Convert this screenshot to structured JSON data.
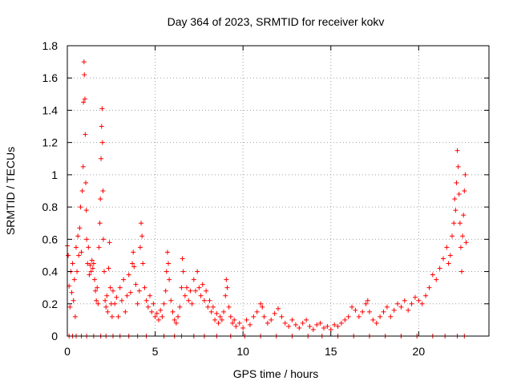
{
  "chart_data": {
    "type": "scatter",
    "title": "Day 364 of 2023, SRMTID for receiver kokv",
    "xlabel": "GPS time / hours",
    "ylabel": "SRMTID / TECUs",
    "xlim": [
      0,
      24
    ],
    "ylim": [
      0,
      1.8
    ],
    "x_ticks": [
      0,
      5,
      10,
      15,
      20
    ],
    "x_tick_labels": [
      "0",
      "5",
      "10",
      "15",
      "20"
    ],
    "y_ticks": [
      0,
      0.2,
      0.4,
      0.6,
      0.8,
      1,
      1.2,
      1.4,
      1.6,
      1.8
    ],
    "y_tick_labels": [
      "0",
      "0.2",
      "0.4",
      "0.6",
      "0.8",
      "1",
      "1.2",
      "1.4",
      "1.6",
      "1.8"
    ],
    "grid": true,
    "marker": "+",
    "marker_color": "#ff0000",
    "series": [
      {
        "name": "SRMTID",
        "points": [
          [
            0.0,
            0.56
          ],
          [
            0.05,
            0.5
          ],
          [
            0.1,
            0.31
          ],
          [
            0.15,
            0.18
          ],
          [
            0.2,
            0.4
          ],
          [
            0.25,
            0.27
          ],
          [
            0.3,
            0.45
          ],
          [
            0.35,
            0.22
          ],
          [
            0.4,
            0.35
          ],
          [
            0.45,
            0.12
          ],
          [
            0.5,
            0.55
          ],
          [
            0.55,
            0.4
          ],
          [
            0.6,
            0.62
          ],
          [
            0.65,
            0.5
          ],
          [
            0.7,
            0.67
          ],
          [
            0.75,
            0.8
          ],
          [
            0.8,
            0.52
          ],
          [
            0.85,
            0.9
          ],
          [
            0.9,
            1.05
          ],
          [
            0.92,
            1.45
          ],
          [
            0.95,
            1.7
          ],
          [
            0.97,
            1.62
          ],
          [
            1.0,
            1.47
          ],
          [
            1.02,
            1.25
          ],
          [
            1.05,
            0.95
          ],
          [
            1.08,
            0.78
          ],
          [
            1.1,
            0.6
          ],
          [
            1.15,
            0.45
          ],
          [
            1.2,
            0.55
          ],
          [
            1.25,
            0.38
          ],
          [
            1.3,
            0.44
          ],
          [
            1.35,
            0.4
          ],
          [
            1.4,
            0.47
          ],
          [
            1.45,
            0.42
          ],
          [
            1.5,
            0.45
          ],
          [
            1.55,
            0.35
          ],
          [
            1.6,
            0.28
          ],
          [
            1.65,
            0.22
          ],
          [
            1.7,
            0.3
          ],
          [
            1.75,
            0.2
          ],
          [
            1.8,
            0.55
          ],
          [
            1.85,
            0.7
          ],
          [
            1.88,
            0.85
          ],
          [
            1.92,
            1.1
          ],
          [
            1.95,
            1.3
          ],
          [
            1.98,
            1.41
          ],
          [
            2.0,
            1.2
          ],
          [
            2.03,
            0.9
          ],
          [
            2.05,
            0.6
          ],
          [
            2.1,
            0.4
          ],
          [
            2.15,
            0.22
          ],
          [
            2.2,
            0.18
          ],
          [
            2.25,
            0.25
          ],
          [
            2.3,
            0.15
          ],
          [
            2.35,
            0.42
          ],
          [
            2.4,
            0.58
          ],
          [
            2.45,
            0.3
          ],
          [
            2.5,
            0.2
          ],
          [
            2.55,
            0.12
          ],
          [
            2.6,
            0.28
          ],
          [
            2.7,
            0.2
          ],
          [
            2.8,
            0.24
          ],
          [
            2.9,
            0.12
          ],
          [
            3.0,
            0.3
          ],
          [
            3.1,
            0.22
          ],
          [
            3.2,
            0.35
          ],
          [
            3.3,
            0.15
          ],
          [
            3.4,
            0.25
          ],
          [
            3.5,
            0.38
          ],
          [
            3.6,
            0.27
          ],
          [
            3.7,
            0.45
          ],
          [
            3.75,
            0.52
          ],
          [
            3.8,
            0.43
          ],
          [
            3.9,
            0.32
          ],
          [
            4.0,
            0.2
          ],
          [
            4.1,
            0.28
          ],
          [
            4.15,
            0.55
          ],
          [
            4.2,
            0.7
          ],
          [
            4.25,
            0.62
          ],
          [
            4.3,
            0.45
          ],
          [
            4.4,
            0.3
          ],
          [
            4.5,
            0.22
          ],
          [
            4.6,
            0.18
          ],
          [
            4.7,
            0.25
          ],
          [
            4.8,
            0.15
          ],
          [
            4.9,
            0.2
          ],
          [
            5.0,
            0.12
          ],
          [
            5.1,
            0.14
          ],
          [
            5.2,
            0.1
          ],
          [
            5.3,
            0.16
          ],
          [
            5.4,
            0.12
          ],
          [
            5.5,
            0.2
          ],
          [
            5.6,
            0.28
          ],
          [
            5.65,
            0.4
          ],
          [
            5.7,
            0.52
          ],
          [
            5.75,
            0.45
          ],
          [
            5.8,
            0.35
          ],
          [
            5.9,
            0.22
          ],
          [
            6.0,
            0.15
          ],
          [
            6.1,
            0.1
          ],
          [
            6.2,
            0.08
          ],
          [
            6.3,
            0.12
          ],
          [
            6.4,
            0.18
          ],
          [
            6.5,
            0.3
          ],
          [
            6.55,
            0.48
          ],
          [
            6.6,
            0.4
          ],
          [
            6.7,
            0.25
          ],
          [
            6.8,
            0.3
          ],
          [
            6.9,
            0.22
          ],
          [
            7.0,
            0.28
          ],
          [
            7.1,
            0.2
          ],
          [
            7.2,
            0.35
          ],
          [
            7.3,
            0.28
          ],
          [
            7.4,
            0.4
          ],
          [
            7.5,
            0.3
          ],
          [
            7.6,
            0.25
          ],
          [
            7.7,
            0.32
          ],
          [
            7.8,
            0.22
          ],
          [
            7.9,
            0.28
          ],
          [
            8.0,
            0.18
          ],
          [
            8.1,
            0.22
          ],
          [
            8.2,
            0.15
          ],
          [
            8.3,
            0.18
          ],
          [
            8.4,
            0.1
          ],
          [
            8.5,
            0.14
          ],
          [
            8.6,
            0.08
          ],
          [
            8.7,
            0.12
          ],
          [
            8.8,
            0.1
          ],
          [
            8.9,
            0.15
          ],
          [
            9.0,
            0.25
          ],
          [
            9.05,
            0.35
          ],
          [
            9.1,
            0.3
          ],
          [
            9.2,
            0.18
          ],
          [
            9.3,
            0.12
          ],
          [
            9.4,
            0.08
          ],
          [
            9.5,
            0.1
          ],
          [
            9.6,
            0.06
          ],
          [
            9.8,
            0.08
          ],
          [
            10.0,
            0.05
          ],
          [
            10.2,
            0.1
          ],
          [
            10.4,
            0.07
          ],
          [
            10.6,
            0.12
          ],
          [
            10.8,
            0.15
          ],
          [
            11.0,
            0.2
          ],
          [
            11.1,
            0.18
          ],
          [
            11.2,
            0.12
          ],
          [
            11.4,
            0.08
          ],
          [
            11.6,
            0.1
          ],
          [
            11.8,
            0.14
          ],
          [
            12.0,
            0.17
          ],
          [
            12.2,
            0.12
          ],
          [
            12.4,
            0.08
          ],
          [
            12.6,
            0.06
          ],
          [
            12.8,
            0.1
          ],
          [
            13.0,
            0.07
          ],
          [
            13.2,
            0.05
          ],
          [
            13.4,
            0.08
          ],
          [
            13.6,
            0.1
          ],
          [
            13.8,
            0.06
          ],
          [
            14.0,
            0.04
          ],
          [
            14.2,
            0.07
          ],
          [
            14.4,
            0.08
          ],
          [
            14.6,
            0.05
          ],
          [
            14.8,
            0.06
          ],
          [
            15.0,
            0.04
          ],
          [
            15.2,
            0.07
          ],
          [
            15.4,
            0.06
          ],
          [
            15.6,
            0.08
          ],
          [
            15.8,
            0.1
          ],
          [
            16.0,
            0.12
          ],
          [
            16.2,
            0.18
          ],
          [
            16.4,
            0.16
          ],
          [
            16.6,
            0.12
          ],
          [
            16.8,
            0.15
          ],
          [
            17.0,
            0.2
          ],
          [
            17.1,
            0.22
          ],
          [
            17.2,
            0.15
          ],
          [
            17.4,
            0.1
          ],
          [
            17.6,
            0.08
          ],
          [
            17.8,
            0.12
          ],
          [
            18.0,
            0.15
          ],
          [
            18.2,
            0.18
          ],
          [
            18.4,
            0.12
          ],
          [
            18.6,
            0.16
          ],
          [
            18.8,
            0.2
          ],
          [
            19.0,
            0.18
          ],
          [
            19.2,
            0.22
          ],
          [
            19.4,
            0.16
          ],
          [
            19.6,
            0.2
          ],
          [
            19.8,
            0.24
          ],
          [
            20.0,
            0.22
          ],
          [
            20.2,
            0.2
          ],
          [
            20.4,
            0.25
          ],
          [
            20.6,
            0.3
          ],
          [
            20.8,
            0.38
          ],
          [
            21.0,
            0.35
          ],
          [
            21.2,
            0.42
          ],
          [
            21.4,
            0.48
          ],
          [
            21.6,
            0.55
          ],
          [
            21.7,
            0.45
          ],
          [
            21.8,
            0.5
          ],
          [
            21.9,
            0.62
          ],
          [
            22.0,
            0.7
          ],
          [
            22.05,
            0.85
          ],
          [
            22.1,
            0.78
          ],
          [
            22.15,
            0.95
          ],
          [
            22.2,
            1.15
          ],
          [
            22.25,
            1.05
          ],
          [
            22.3,
            0.88
          ],
          [
            22.35,
            0.7
          ],
          [
            22.4,
            0.55
          ],
          [
            22.45,
            0.4
          ],
          [
            22.5,
            0.62
          ],
          [
            22.55,
            0.75
          ],
          [
            22.6,
            0.9
          ],
          [
            22.65,
            1.0
          ],
          [
            22.7,
            0.58
          ],
          [
            0.1,
            0.0
          ],
          [
            0.3,
            0.0
          ],
          [
            0.5,
            0.0
          ],
          [
            0.8,
            0.0
          ],
          [
            1.1,
            0.0
          ],
          [
            1.5,
            0.0
          ],
          [
            1.9,
            0.0
          ],
          [
            2.2,
            0.0
          ],
          [
            2.6,
            0.0
          ],
          [
            3.0,
            0.0
          ],
          [
            3.5,
            0.0
          ],
          [
            4.0,
            0.0
          ],
          [
            4.5,
            0.0
          ],
          [
            5.5,
            0.0
          ],
          [
            6.1,
            0.0
          ],
          [
            6.5,
            0.0
          ],
          [
            7.2,
            0.0
          ],
          [
            7.8,
            0.0
          ],
          [
            8.5,
            0.0
          ],
          [
            9.3,
            0.0
          ],
          [
            10.1,
            0.0
          ],
          [
            11.0,
            0.0
          ],
          [
            11.9,
            0.0
          ],
          [
            12.8,
            0.0
          ],
          [
            13.7,
            0.0
          ],
          [
            14.5,
            0.0
          ],
          [
            15.4,
            0.0
          ],
          [
            16.3,
            0.0
          ],
          [
            17.2,
            0.0
          ],
          [
            18.1,
            0.0
          ],
          [
            19.0,
            0.0
          ],
          [
            19.9,
            0.0
          ],
          [
            20.8,
            0.0
          ],
          [
            21.5,
            0.0
          ],
          [
            22.2,
            0.0
          ],
          [
            22.6,
            0.0
          ]
        ]
      }
    ]
  }
}
